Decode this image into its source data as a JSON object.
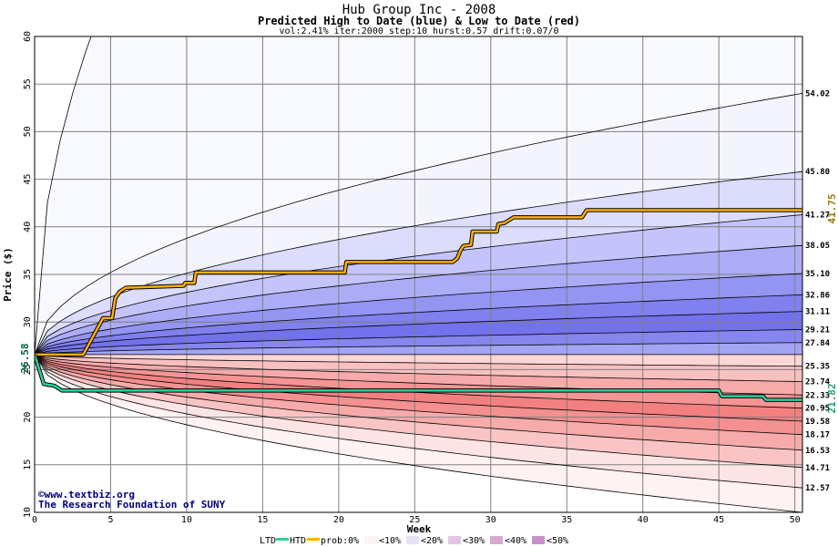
{
  "header": {
    "title": "Hub Group Inc - 2008",
    "subtitle": "Predicted High to Date (blue) &  Low to Date (red)",
    "params": "vol:2.41% iter:2000 step:10 hurst:0.57 drift:0.07/0"
  },
  "watermark": {
    "line1": "©www.textbiz.org",
    "line2": "The Research Foundation of SUNY"
  },
  "legend": {
    "ltd": "LTD",
    "htd": "HTD",
    "prob": "prob:",
    "p0": "0%",
    "p10": "<10%",
    "p20": "<20%",
    "p30": "<30%",
    "p40": "<40%",
    "p50": "<50%"
  },
  "colors": {
    "htd": "#ffb000",
    "ltd": "#30d0a0",
    "right_high": "#a07800",
    "right_low": "#20a070",
    "start_label": "#006040"
  },
  "chart_data": {
    "type": "line",
    "title": "Hub Group Inc - 2008",
    "xlabel": "Week",
    "ylabel": "Price ($)",
    "xlim": [
      0,
      50.5
    ],
    "ylim": [
      10,
      60
    ],
    "xticks": [
      0,
      5,
      10,
      15,
      20,
      25,
      30,
      35,
      40,
      45,
      50
    ],
    "yticks": [
      10,
      15,
      20,
      25,
      30,
      35,
      40,
      45,
      50,
      55,
      60
    ],
    "start_price": 26.58,
    "start_label": "26.58",
    "grid": true,
    "upper_bands": [
      {
        "label": "54.02",
        "end": 54.02,
        "fill": "#f4f4ff"
      },
      {
        "label": "45.80",
        "end": 45.8,
        "fill": "#dcdcfc"
      },
      {
        "label": "41.27",
        "end": 41.27,
        "fill": "#c4c4fa"
      },
      {
        "label": "38.05",
        "end": 38.05,
        "fill": "#acacf6"
      },
      {
        "label": "35.10",
        "end": 35.1,
        "fill": "#9494f2"
      },
      {
        "label": "32.86",
        "end": 32.86,
        "fill": "#8080ee"
      },
      {
        "label": "31.11",
        "end": 31.11,
        "fill": "#7272ec"
      },
      {
        "label": "29.21",
        "end": 29.21,
        "fill": "#8686ee"
      },
      {
        "label": "27.84",
        "end": 27.84,
        "fill": "#a4a4f4"
      }
    ],
    "lower_bands": [
      {
        "label": "25.35",
        "end": 25.35,
        "fill": "#fbd6d6"
      },
      {
        "label": "23.74",
        "end": 23.74,
        "fill": "#f9c0c0"
      },
      {
        "label": "22.33",
        "end": 22.33,
        "fill": "#f7aaaa"
      },
      {
        "label": "20.95",
        "end": 20.95,
        "fill": "#f59494"
      },
      {
        "label": "19.58",
        "end": 19.58,
        "fill": "#f38080"
      },
      {
        "label": "18.17",
        "end": 18.17,
        "fill": "#f49090"
      },
      {
        "label": "16.53",
        "end": 16.53,
        "fill": "#f7aaaa"
      },
      {
        "label": "14.71",
        "end": 14.71,
        "fill": "#fac4c4"
      },
      {
        "label": "12.57",
        "end": 12.57,
        "fill": "#fde4e4"
      }
    ],
    "outer_lines": {
      "high": 150,
      "low": 10
    },
    "series": [
      {
        "name": "HTD",
        "color": "#ffb000",
        "end_label": "41.75",
        "points": [
          [
            0,
            26.58
          ],
          [
            3.2,
            26.58
          ],
          [
            4.5,
            30.4
          ],
          [
            5.1,
            30.4
          ],
          [
            5.3,
            32.5
          ],
          [
            5.6,
            33.2
          ],
          [
            6,
            33.6
          ],
          [
            9.8,
            33.8
          ],
          [
            9.9,
            34.1
          ],
          [
            10.5,
            34.1
          ],
          [
            10.6,
            35.2
          ],
          [
            20.4,
            35.2
          ],
          [
            20.5,
            36.3
          ],
          [
            27.5,
            36.3
          ],
          [
            27.8,
            36.7
          ],
          [
            28,
            37.5
          ],
          [
            28.2,
            38
          ],
          [
            28.7,
            38.1
          ],
          [
            28.8,
            39.5
          ],
          [
            30.4,
            39.5
          ],
          [
            30.5,
            40.3
          ],
          [
            30.9,
            40.4
          ],
          [
            31.2,
            40.7
          ],
          [
            31.5,
            41
          ],
          [
            36,
            41
          ],
          [
            36.3,
            41.75
          ],
          [
            50.5,
            41.75
          ]
        ]
      },
      {
        "name": "LTD",
        "color": "#30d0a0",
        "end_label": "21.82",
        "points": [
          [
            0,
            26.58
          ],
          [
            0.6,
            23.5
          ],
          [
            1.3,
            23.3
          ],
          [
            1.8,
            22.8
          ],
          [
            45,
            22.8
          ],
          [
            45.2,
            22.2
          ],
          [
            47.9,
            22.2
          ],
          [
            48.1,
            21.82
          ],
          [
            50.5,
            21.82
          ]
        ]
      }
    ]
  }
}
